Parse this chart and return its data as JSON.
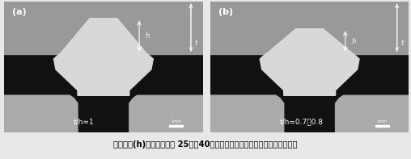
{
  "fig_width": 5.08,
  "fig_height": 1.97,
  "dpi": 100,
  "panel_a_label": "(a)",
  "panel_b_label": "(b)",
  "label_a": "t/h≈1",
  "label_b": "t/h=0.7～0.8",
  "caption": "開先深さ(h)を従来よりも 25％～40％程度厚くして溶接部の疲労強度を改善",
  "bg_dark": "#111111",
  "plate_gray": "#aaaaaa",
  "weld_light": "#d8d8d8",
  "top_plate_gray": "#999999",
  "text_white": "#ffffff",
  "caption_color": "#000000",
  "fig_bg": "#e8e8e8"
}
